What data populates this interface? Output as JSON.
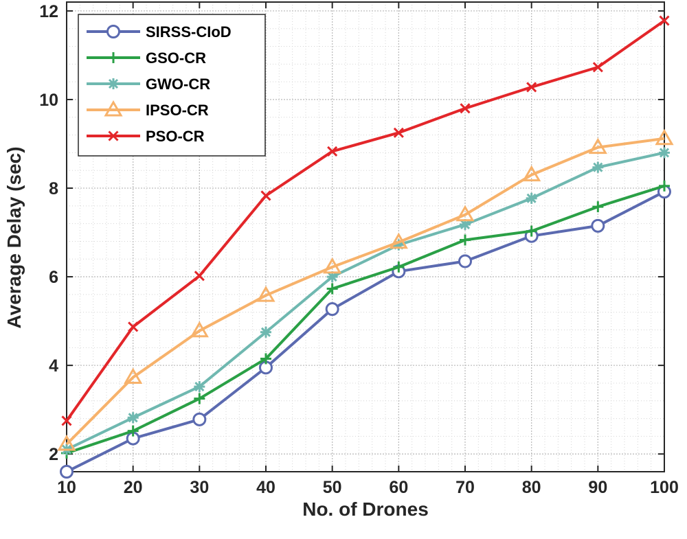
{
  "chart_data": {
    "type": "line",
    "title": "",
    "xlabel": "No. of Drones",
    "ylabel": "Average Delay (sec)",
    "x": [
      10,
      20,
      30,
      40,
      50,
      60,
      70,
      80,
      90,
      100
    ],
    "xlim": [
      10,
      100
    ],
    "ylim": [
      1.6,
      12.2
    ],
    "xticks": [
      10,
      20,
      30,
      40,
      50,
      60,
      70,
      80,
      90,
      100
    ],
    "yticks": [
      2,
      4,
      6,
      8,
      10,
      12
    ],
    "grid": true,
    "legend_position": "top-left",
    "series": [
      {
        "name": "SIRSS-CIoD",
        "marker": "circle",
        "color": "#5b6ab0",
        "values": [
          1.6,
          2.35,
          2.78,
          3.95,
          5.27,
          6.12,
          6.35,
          6.92,
          7.15,
          7.92
        ]
      },
      {
        "name": "GSO-CR",
        "marker": "plus",
        "color": "#2aa046",
        "values": [
          2.02,
          2.52,
          3.25,
          4.15,
          5.73,
          6.22,
          6.83,
          7.03,
          7.58,
          8.05
        ]
      },
      {
        "name": "GWO-CR",
        "marker": "star",
        "color": "#6fb8b0",
        "values": [
          2.1,
          2.82,
          3.52,
          4.75,
          6.0,
          6.72,
          7.18,
          7.77,
          8.47,
          8.8
        ]
      },
      {
        "name": "IPSO-CR",
        "marker": "triangle",
        "color": "#f7b26b",
        "values": [
          2.22,
          3.73,
          4.78,
          5.58,
          6.22,
          6.78,
          7.4,
          8.3,
          8.92,
          9.12
        ]
      },
      {
        "name": "PSO-CR",
        "marker": "x",
        "color": "#e3262a",
        "values": [
          2.75,
          4.87,
          6.02,
          7.83,
          8.83,
          9.25,
          9.8,
          10.28,
          10.73,
          11.78
        ]
      }
    ]
  }
}
